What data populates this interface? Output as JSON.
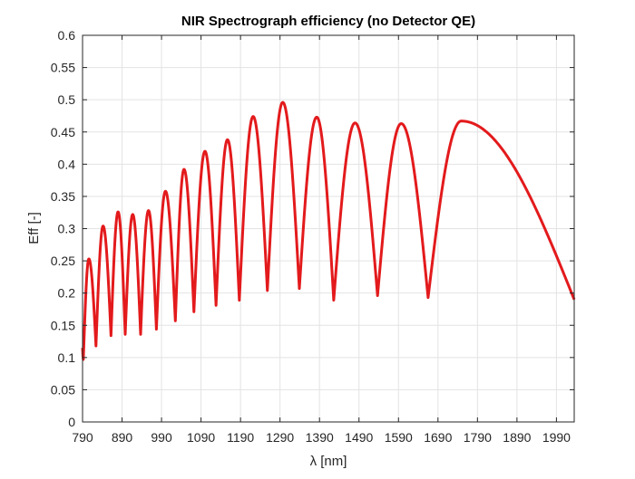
{
  "chart_data": {
    "type": "line",
    "title": "NIR Spectrograph efficiency (no Detector QE)",
    "xlabel": "λ [nm]",
    "ylabel": "Eff [-]",
    "xlim": [
      790,
      2035
    ],
    "ylim": [
      0,
      0.6
    ],
    "xticks": [
      790,
      890,
      990,
      1090,
      1190,
      1290,
      1390,
      1490,
      1590,
      1690,
      1790,
      1890,
      1990
    ],
    "yticks": [
      0,
      0.05,
      0.1,
      0.15,
      0.2,
      0.25,
      0.3,
      0.35,
      0.4,
      0.45,
      0.5,
      0.55,
      0.6
    ],
    "grid": true,
    "series": [
      {
        "name": "Efficiency",
        "color": "#e31a1c",
        "peaks": [
          {
            "x": 806,
            "y": 0.253
          },
          {
            "x": 842,
            "y": 0.304
          },
          {
            "x": 880,
            "y": 0.326
          },
          {
            "x": 917,
            "y": 0.322
          },
          {
            "x": 957,
            "y": 0.328
          },
          {
            "x": 1000,
            "y": 0.358
          },
          {
            "x": 1047,
            "y": 0.392
          },
          {
            "x": 1100,
            "y": 0.42
          },
          {
            "x": 1157,
            "y": 0.438
          },
          {
            "x": 1222,
            "y": 0.474
          },
          {
            "x": 1297,
            "y": 0.496
          },
          {
            "x": 1383,
            "y": 0.473
          },
          {
            "x": 1480,
            "y": 0.464
          },
          {
            "x": 1597,
            "y": 0.463
          },
          {
            "x": 1749,
            "y": 0.467
          }
        ],
        "troughs": [
          {
            "x": 792,
            "y": 0.097
          },
          {
            "x": 824,
            "y": 0.118
          },
          {
            "x": 862,
            "y": 0.134
          },
          {
            "x": 898,
            "y": 0.136
          },
          {
            "x": 937,
            "y": 0.136
          },
          {
            "x": 977,
            "y": 0.144
          },
          {
            "x": 1025,
            "y": 0.157
          },
          {
            "x": 1072,
            "y": 0.171
          },
          {
            "x": 1128,
            "y": 0.181
          },
          {
            "x": 1187,
            "y": 0.189
          },
          {
            "x": 1258,
            "y": 0.204
          },
          {
            "x": 1339,
            "y": 0.207
          },
          {
            "x": 1426,
            "y": 0.189
          },
          {
            "x": 1537,
            "y": 0.196
          },
          {
            "x": 1665,
            "y": 0.193
          }
        ],
        "start": {
          "x": 790,
          "y": 0.115
        },
        "end": {
          "x": 2035,
          "y": 0.19
        }
      }
    ]
  }
}
